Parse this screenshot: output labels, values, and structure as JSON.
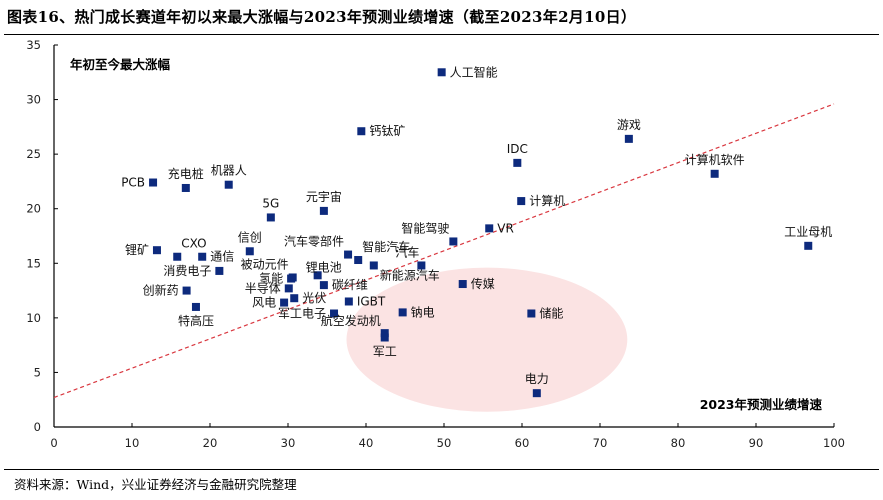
{
  "title": "图表16、热门成长赛道年初以来最大涨幅与2023年预测业绩增速（截至2023年2月10日）",
  "source": "资料来源：Wind，兴业证券经济与金融研究院整理",
  "chart_data": {
    "type": "scatter",
    "title": "图表16、热门成长赛道年初以来最大涨幅与2023年预测业绩增速（截至2023年2月10日）",
    "xlabel": "2023年预测业绩增速",
    "ylabel": "年初至今最大涨幅",
    "xlim": [
      0,
      100
    ],
    "ylim": [
      0,
      35
    ],
    "xticks": [
      0,
      10,
      20,
      30,
      40,
      50,
      60,
      70,
      80,
      90,
      100
    ],
    "yticks": [
      0,
      5,
      10,
      15,
      20,
      25,
      30,
      35
    ],
    "grid": false,
    "marker_color": "#0d2a7d",
    "trendline": {
      "style": "dashed",
      "color": "#d9373f",
      "x": [
        0,
        100
      ],
      "y": [
        2.7,
        29.6
      ]
    },
    "highlight_ellipse": {
      "color": "#fbe3e3",
      "center": [
        55.5,
        8.0
      ],
      "radius_x": 18.0,
      "radius_y": 6.6
    },
    "points": [
      {
        "name": "人工智能",
        "x": 49.7,
        "y": 32.5,
        "pos": "right"
      },
      {
        "name": "钙钛矿",
        "x": 39.4,
        "y": 27.1,
        "pos": "right"
      },
      {
        "name": "游戏",
        "x": 73.7,
        "y": 26.4,
        "pos": "top"
      },
      {
        "name": "IDC",
        "x": 59.4,
        "y": 24.2,
        "pos": "top"
      },
      {
        "name": "计算机软件",
        "x": 84.7,
        "y": 23.2,
        "pos": "top"
      },
      {
        "name": "PCB",
        "x": 12.7,
        "y": 22.4,
        "pos": "left"
      },
      {
        "name": "机器人",
        "x": 22.4,
        "y": 22.2,
        "pos": "top"
      },
      {
        "name": "充电桩",
        "x": 16.9,
        "y": 21.9,
        "pos": "top"
      },
      {
        "name": "计算机",
        "x": 59.9,
        "y": 20.7,
        "pos": "right"
      },
      {
        "name": "元宇宙",
        "x": 34.6,
        "y": 19.8,
        "pos": "top"
      },
      {
        "name": "5G",
        "x": 27.8,
        "y": 19.2,
        "pos": "top"
      },
      {
        "name": "VR",
        "x": 55.8,
        "y": 18.2,
        "pos": "right"
      },
      {
        "name": "智能驾驶",
        "x": 51.2,
        "y": 17.0,
        "pos": "topleft"
      },
      {
        "name": "工业母机",
        "x": 96.7,
        "y": 16.6,
        "pos": "top"
      },
      {
        "name": "锂矿",
        "x": 13.2,
        "y": 16.2,
        "pos": "left"
      },
      {
        "name": "信创",
        "x": 25.1,
        "y": 16.1,
        "pos": "top"
      },
      {
        "name": "汽车零部件",
        "x": 37.7,
        "y": 15.8,
        "pos": "topleft"
      },
      {
        "name": "CXO",
        "x": 15.8,
        "y": 15.6,
        "pos": "topright"
      },
      {
        "name": "通信",
        "x": 19.0,
        "y": 15.6,
        "pos": "right"
      },
      {
        "name": "智能汽车",
        "x": 39.0,
        "y": 15.3,
        "pos": "topright"
      },
      {
        "name": "新能源汽车",
        "x": 41.0,
        "y": 14.8,
        "pos": "bottomright"
      },
      {
        "name": "汽车",
        "x": 47.1,
        "y": 14.8,
        "pos": "topleft2"
      },
      {
        "name": "消费电子",
        "x": 21.2,
        "y": 14.3,
        "pos": "left"
      },
      {
        "name": "锂电池",
        "x": 33.8,
        "y": 13.9,
        "pos": "topleft3"
      },
      {
        "name": "被动元件",
        "x": 30.6,
        "y": 13.7,
        "pos": "topleft"
      },
      {
        "name": "氢能",
        "x": 30.4,
        "y": 13.6,
        "pos": "left"
      },
      {
        "name": "传媒",
        "x": 52.4,
        "y": 13.1,
        "pos": "right"
      },
      {
        "name": "碳纤维",
        "x": 34.6,
        "y": 13.0,
        "pos": "right"
      },
      {
        "name": "半导体",
        "x": 30.1,
        "y": 12.7,
        "pos": "left"
      },
      {
        "name": "创新药",
        "x": 17.0,
        "y": 12.5,
        "pos": "left"
      },
      {
        "name": "光伏",
        "x": 30.8,
        "y": 11.8,
        "pos": "right"
      },
      {
        "name": "IGBT",
        "x": 37.8,
        "y": 11.5,
        "pos": "right"
      },
      {
        "name": "风电",
        "x": 29.5,
        "y": 11.4,
        "pos": "left"
      },
      {
        "name": "特高压",
        "x": 18.2,
        "y": 11.0,
        "pos": "bottom"
      },
      {
        "name": "钠电",
        "x": 44.7,
        "y": 10.5,
        "pos": "right"
      },
      {
        "name": "储能",
        "x": 61.2,
        "y": 10.4,
        "pos": "right"
      },
      {
        "name": "军工电子",
        "x": 35.9,
        "y": 10.4,
        "pos": "left"
      },
      {
        "name": "航空发动机",
        "x": 42.4,
        "y": 8.6,
        "pos": "topleft4"
      },
      {
        "name": "军工",
        "x": 42.4,
        "y": 8.2,
        "pos": "bottom"
      },
      {
        "name": "电力",
        "x": 61.9,
        "y": 3.1,
        "pos": "top"
      }
    ]
  }
}
